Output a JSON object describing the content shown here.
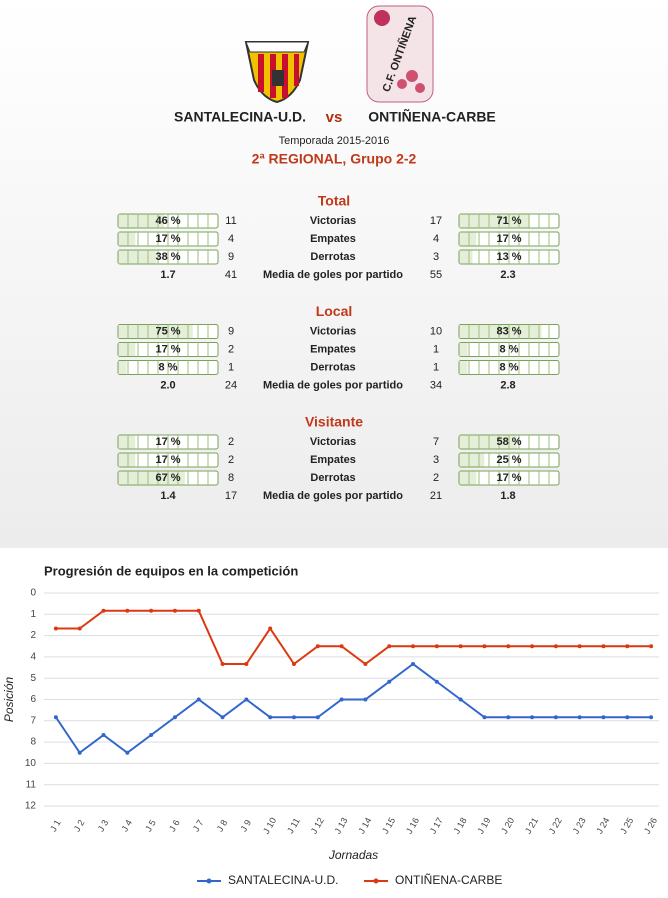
{
  "header": {
    "home_team": "SANTALECINA-U.D.",
    "vs": "vs",
    "away_team": "ONTIÑENA-CARBE",
    "season": "Temporada 2015-2016",
    "competition": "2ª REGIONAL, Grupo 2-2"
  },
  "sections": [
    {
      "title": "Total",
      "rows": [
        {
          "label": "Victorias",
          "home_pct": {
            "value": 46,
            "label": "46 %"
          },
          "home_count": 11,
          "away_count": 17,
          "away_pct": {
            "value": 71,
            "label": "71 %"
          }
        },
        {
          "label": "Empates",
          "home_pct": {
            "value": 17,
            "label": "17 %"
          },
          "home_count": 4,
          "away_count": 4,
          "away_pct": {
            "value": 17,
            "label": "17 %"
          }
        },
        {
          "label": "Derrotas",
          "home_pct": {
            "value": 38,
            "label": "38 %"
          },
          "home_count": 9,
          "away_count": 3,
          "away_pct": {
            "value": 13,
            "label": "13 %"
          }
        }
      ],
      "goals": {
        "label": "Media de goles por partido",
        "home_avg": "1.7",
        "home_goals": 41,
        "away_goals": 55,
        "away_avg": "2.3"
      }
    },
    {
      "title": "Local",
      "rows": [
        {
          "label": "Victorias",
          "home_pct": {
            "value": 75,
            "label": "75 %"
          },
          "home_count": 9,
          "away_count": 10,
          "away_pct": {
            "value": 83,
            "label": "83 %"
          }
        },
        {
          "label": "Empates",
          "home_pct": {
            "value": 17,
            "label": "17 %"
          },
          "home_count": 2,
          "away_count": 1,
          "away_pct": {
            "value": 8,
            "label": "8 %"
          }
        },
        {
          "label": "Derrotas",
          "home_pct": {
            "value": 8,
            "label": "8 %"
          },
          "home_count": 1,
          "away_count": 1,
          "away_pct": {
            "value": 8,
            "label": "8 %"
          }
        }
      ],
      "goals": {
        "label": "Media de goles por partido",
        "home_avg": "2.0",
        "home_goals": 24,
        "away_goals": 34,
        "away_avg": "2.8"
      }
    },
    {
      "title": "Visitante",
      "rows": [
        {
          "label": "Victorias",
          "home_pct": {
            "value": 17,
            "label": "17 %"
          },
          "home_count": 2,
          "away_count": 7,
          "away_pct": {
            "value": 58,
            "label": "58 %"
          }
        },
        {
          "label": "Empates",
          "home_pct": {
            "value": 17,
            "label": "17 %"
          },
          "home_count": 2,
          "away_count": 3,
          "away_pct": {
            "value": 25,
            "label": "25 %"
          }
        },
        {
          "label": "Derrotas",
          "home_pct": {
            "value": 67,
            "label": "67 %"
          },
          "home_count": 8,
          "away_count": 2,
          "away_pct": {
            "value": 17,
            "label": "17 %"
          }
        }
      ],
      "goals": {
        "label": "Media de goles por partido",
        "home_avg": "1.4",
        "home_goals": 17,
        "away_goals": 21,
        "away_avg": "1.8"
      }
    }
  ],
  "chart_data": {
    "type": "line",
    "title": "Progresión de equipos en la competición",
    "x_label": "Jornadas",
    "y_label": "Posición",
    "categories": [
      "J 1",
      "J 2",
      "J 3",
      "J 4",
      "J 5",
      "J 6",
      "J 7",
      "J 8",
      "J 9",
      "J 10",
      "J 11",
      "J 12",
      "J 13",
      "J 14",
      "J 15",
      "J 16",
      "J 17",
      "J 18",
      "J 19",
      "J 20",
      "J 21",
      "J 22",
      "J 23",
      "J 24",
      "J 25",
      "J 26"
    ],
    "series": [
      {
        "name": "SANTALECINA-U.D.",
        "color": "#3366cc",
        "values": [
          7,
          9,
          8,
          9,
          8,
          7,
          6,
          7,
          6,
          7,
          7,
          7,
          6,
          6,
          5,
          4,
          5,
          6,
          7,
          7,
          7,
          7,
          7,
          7,
          7,
          7
        ]
      },
      {
        "name": "ONTIÑENA-CARBE",
        "color": "#dc3912",
        "values": [
          2,
          2,
          1,
          1,
          1,
          1,
          1,
          4,
          4,
          2,
          4,
          3,
          3,
          4,
          3,
          3,
          3,
          3,
          3,
          3,
          3,
          3,
          3,
          3,
          3,
          3
        ]
      }
    ],
    "ylim": [
      0,
      12
    ],
    "y_reversed": true,
    "yticks": [
      0,
      {
        "value": 1.2,
        "label": "1"
      },
      {
        "value": 2.4,
        "label": "2"
      },
      {
        "value": 3.6,
        "label": "4"
      },
      {
        "value": 4.8,
        "label": "5"
      },
      6,
      {
        "value": 7.2,
        "label": "7"
      },
      {
        "value": 8.4,
        "label": "8"
      },
      {
        "value": 9.6,
        "label": "10"
      },
      {
        "value": 10.8,
        "label": "11"
      },
      12
    ],
    "grid": true,
    "legend": "bottom"
  }
}
